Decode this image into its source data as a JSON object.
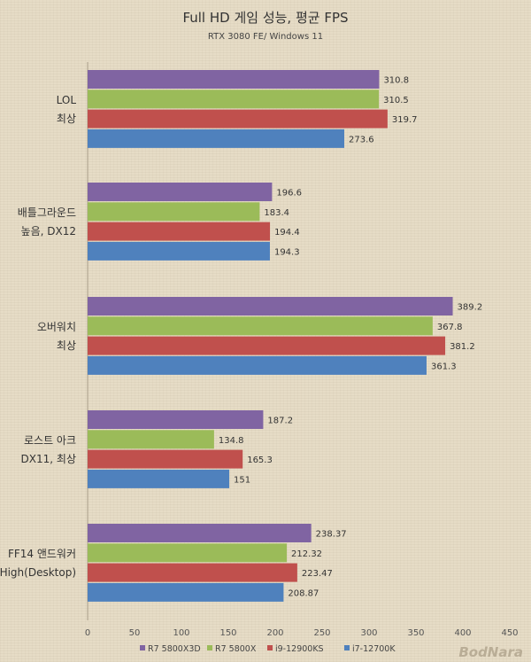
{
  "chart_data": {
    "type": "bar",
    "orientation": "horizontal",
    "title": "Full HD 게임 성능, 평균 FPS",
    "subtitle": "RTX 3080 FE/ Windows 11",
    "categories": [
      [
        "LOL",
        "최상"
      ],
      [
        "배틀그라운드",
        "높음, DX12"
      ],
      [
        "오버워치",
        "최상"
      ],
      [
        "로스트 아크",
        "DX11, 최상"
      ],
      [
        "FF14 앤드워커",
        "High(Desktop)"
      ]
    ],
    "series": [
      {
        "name": "R7 5800X3D",
        "color": "#8064a2",
        "values": [
          310.8,
          196.6,
          389.2,
          187.2,
          238.37
        ],
        "labels": [
          "310.8",
          "196.6",
          "389.2",
          "187.2",
          "238.37"
        ]
      },
      {
        "name": "R7 5800X",
        "color": "#9bbb59",
        "values": [
          310.5,
          183.4,
          367.8,
          134.8,
          212.32
        ],
        "labels": [
          "310.5",
          "183.4",
          "367.8",
          "134.8",
          "212.32"
        ]
      },
      {
        "name": "i9-12900KS",
        "color": "#c0504d",
        "values": [
          319.7,
          194.4,
          381.2,
          165.3,
          223.47
        ],
        "labels": [
          "319.7",
          "194.4",
          "381.2",
          "165.3",
          "223.47"
        ]
      },
      {
        "name": "i7-12700K",
        "color": "#4f81bd",
        "values": [
          273.6,
          194.3,
          361.3,
          151,
          208.87
        ],
        "labels": [
          "273.6",
          "194.3",
          "361.3",
          "151",
          "208.87"
        ]
      }
    ],
    "xlim": [
      0,
      450
    ],
    "xticks": [
      "0",
      "50",
      "100",
      "150",
      "200",
      "250",
      "300",
      "350",
      "400",
      "450"
    ],
    "grid": false,
    "legend_position": "bottom"
  },
  "watermark": "BodNara"
}
